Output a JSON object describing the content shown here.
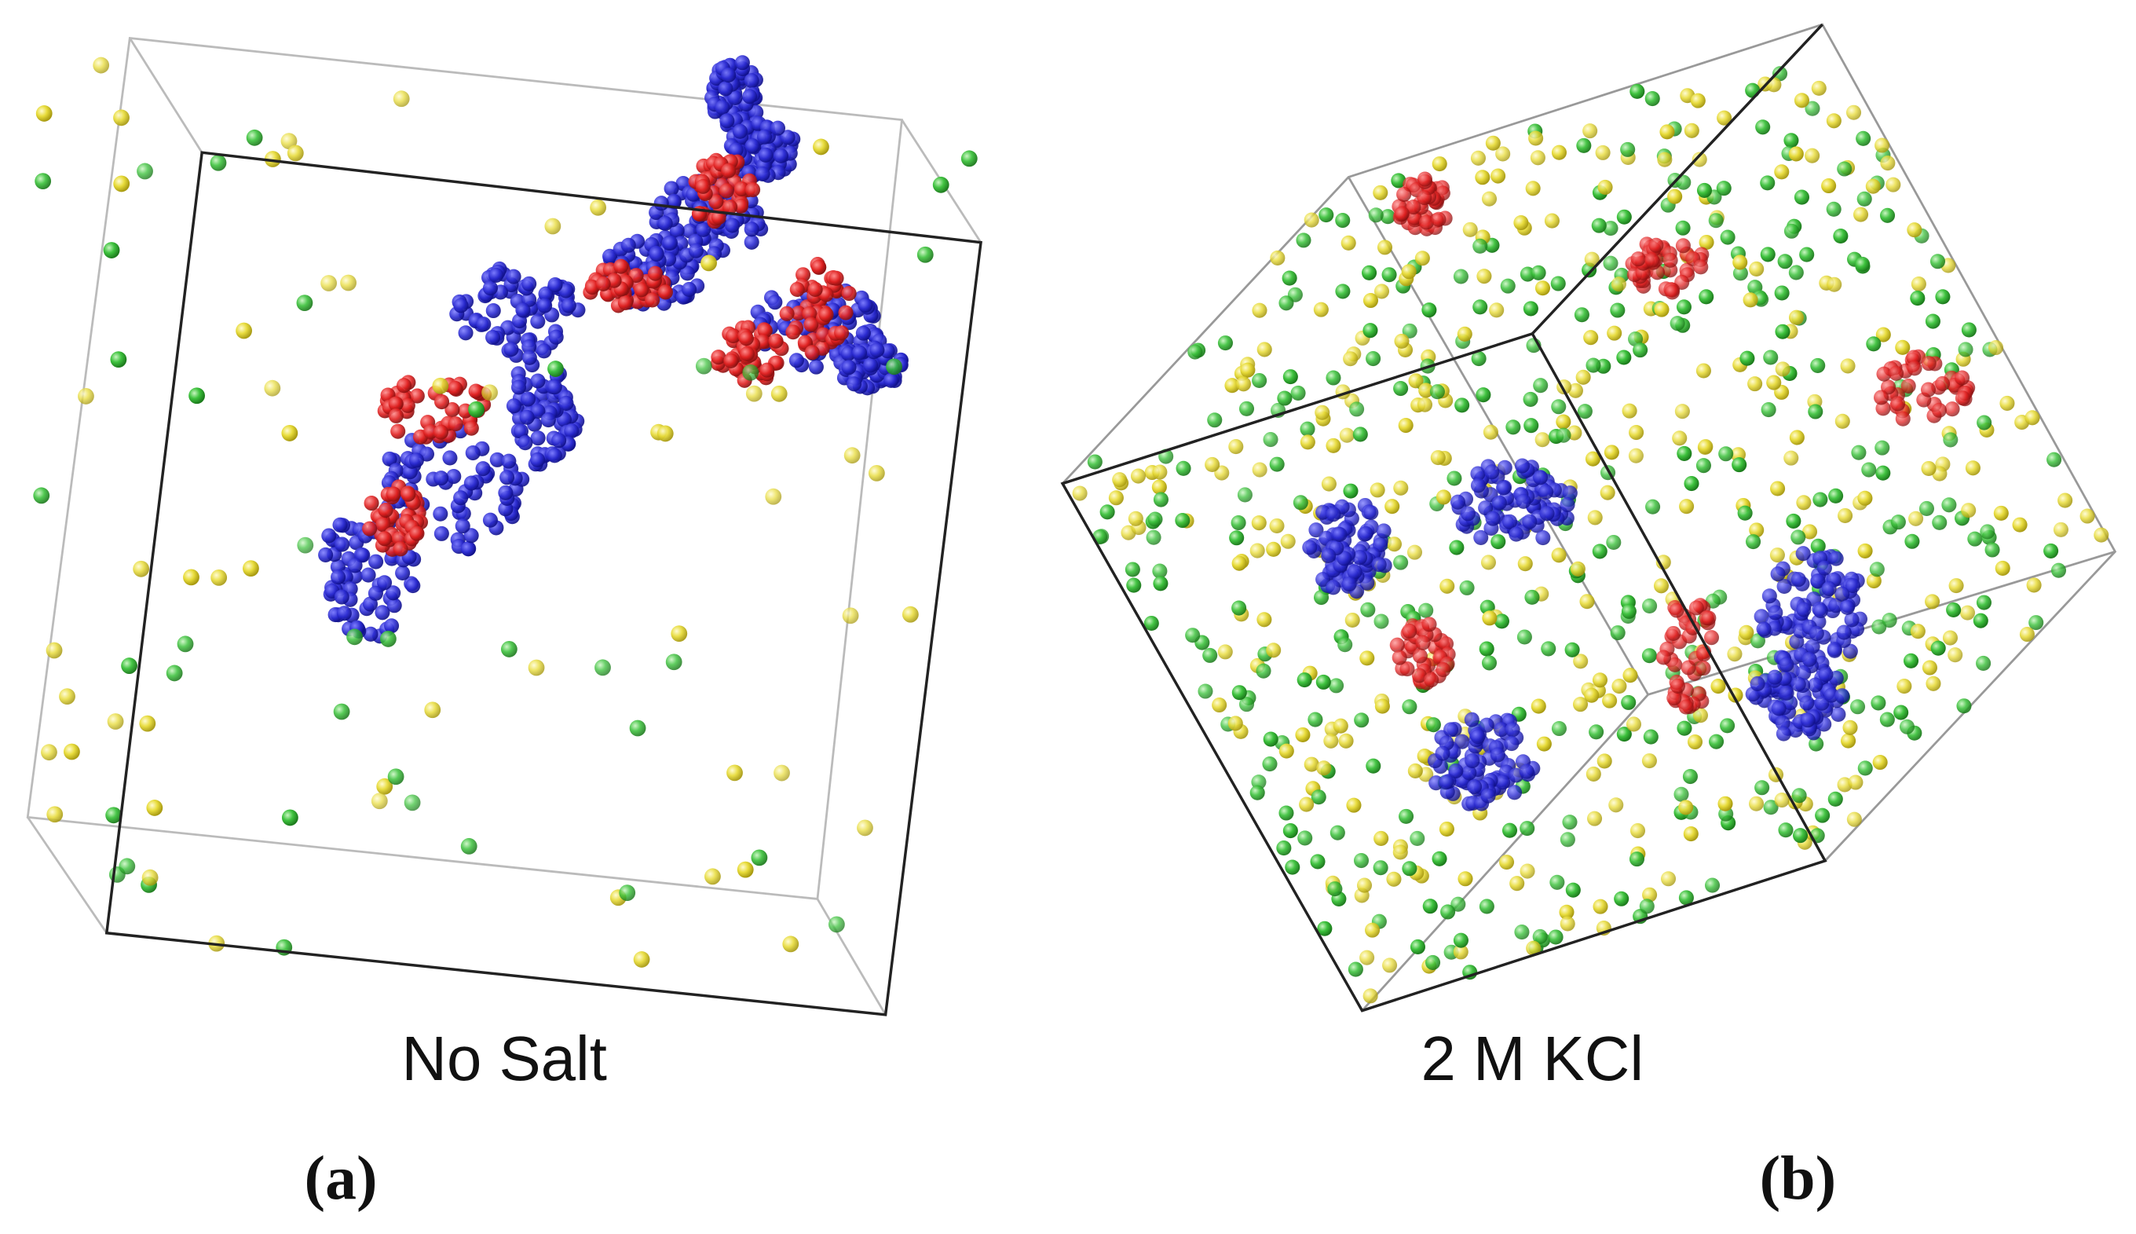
{
  "panels": [
    {
      "caption": "No Salt",
      "label": "(a)"
    },
    {
      "caption": "2 M KCl",
      "label": "(b)"
    }
  ]
}
